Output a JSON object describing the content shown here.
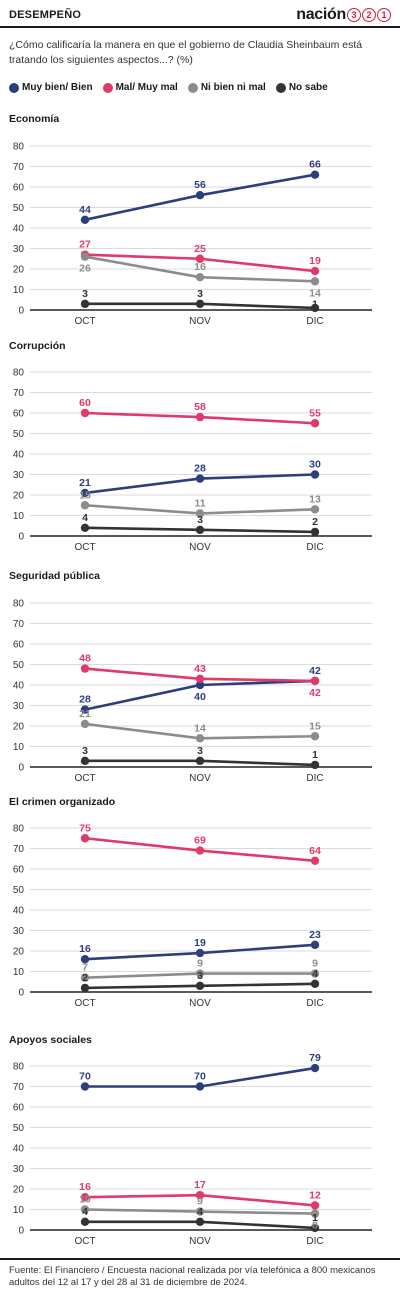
{
  "header": {
    "section": "DESEMPEÑO",
    "brand_word": "nación",
    "brand_digits": [
      "3",
      "2",
      "1"
    ]
  },
  "question": "¿Cómo calificaría la manera en que el gobierno de Claudia Sheinbaum está tratando los siguientes aspectos...? (%)",
  "legend": [
    {
      "label": "Muy bien/ Bien",
      "color": "#2d3e7c"
    },
    {
      "label": "Mal/ Muy mal",
      "color": "#e0396a"
    },
    {
      "label": "Ni bien ni mal",
      "color": "#8c8c8c"
    },
    {
      "label": "No sabe",
      "color": "#333333"
    }
  ],
  "chart_data": [
    {
      "type": "line",
      "title": "Economía",
      "categories": [
        "OCT",
        "NOV",
        "DIC"
      ],
      "ylim": [
        0,
        80
      ],
      "yticks": [
        "0",
        "10",
        "20",
        "30",
        "40",
        "50",
        "60",
        "70",
        "80"
      ],
      "grid": true,
      "series": [
        {
          "name": "Muy bien/ Bien",
          "color": "#2d3e7c",
          "values": [
            44,
            56,
            66
          ]
        },
        {
          "name": "Mal/ Muy mal",
          "color": "#e0396a",
          "values": [
            27,
            25,
            19
          ]
        },
        {
          "name": "Ni bien ni mal",
          "color": "#8c8c8c",
          "values": [
            26,
            16,
            14
          ]
        },
        {
          "name": "No sabe",
          "color": "#333333",
          "values": [
            3,
            3,
            1
          ]
        }
      ]
    },
    {
      "type": "line",
      "title": "Corrupción",
      "categories": [
        "OCT",
        "NOV",
        "DIC"
      ],
      "ylim": [
        0,
        80
      ],
      "yticks": [
        "0",
        "10",
        "20",
        "30",
        "40",
        "50",
        "60",
        "70",
        "80"
      ],
      "grid": true,
      "series": [
        {
          "name": "Muy bien/ Bien",
          "color": "#2d3e7c",
          "values": [
            21,
            28,
            30
          ]
        },
        {
          "name": "Mal/ Muy mal",
          "color": "#e0396a",
          "values": [
            60,
            58,
            55
          ]
        },
        {
          "name": "Ni bien ni mal",
          "color": "#8c8c8c",
          "values": [
            15,
            11,
            13
          ]
        },
        {
          "name": "No sabe",
          "color": "#333333",
          "values": [
            4,
            3,
            2
          ]
        }
      ]
    },
    {
      "type": "line",
      "title": "Seguridad pública",
      "categories": [
        "OCT",
        "NOV",
        "DIC"
      ],
      "ylim": [
        0,
        80
      ],
      "yticks": [
        "0",
        "10",
        "20",
        "30",
        "40",
        "50",
        "60",
        "70",
        "80"
      ],
      "grid": true,
      "series": [
        {
          "name": "Muy bien/ Bien",
          "color": "#2d3e7c",
          "values": [
            28,
            40,
            42
          ]
        },
        {
          "name": "Mal/ Muy mal",
          "color": "#e0396a",
          "values": [
            48,
            43,
            42
          ]
        },
        {
          "name": "Ni bien ni mal",
          "color": "#8c8c8c",
          "values": [
            21,
            14,
            15
          ]
        },
        {
          "name": "No sabe",
          "color": "#333333",
          "values": [
            3,
            3,
            1
          ]
        }
      ]
    },
    {
      "type": "line",
      "title": "El crimen organizado",
      "categories": [
        "OCT",
        "NOV",
        "DIC"
      ],
      "ylim": [
        0,
        80
      ],
      "yticks": [
        "0",
        "10",
        "20",
        "30",
        "40",
        "50",
        "60",
        "70",
        "80"
      ],
      "grid": true,
      "series": [
        {
          "name": "Muy bien/ Bien",
          "color": "#2d3e7c",
          "values": [
            16,
            19,
            23
          ]
        },
        {
          "name": "Mal/ Muy mal",
          "color": "#e0396a",
          "values": [
            75,
            69,
            64
          ]
        },
        {
          "name": "Ni bien ni mal",
          "color": "#8c8c8c",
          "values": [
            7,
            9,
            9
          ]
        },
        {
          "name": "No sabe",
          "color": "#333333",
          "values": [
            2,
            3,
            4
          ]
        }
      ]
    },
    {
      "type": "line",
      "title": "Apoyos sociales",
      "categories": [
        "OCT",
        "NOV",
        "DIC"
      ],
      "ylim": [
        0,
        80
      ],
      "yticks": [
        "0",
        "10",
        "20",
        "30",
        "40",
        "50",
        "60",
        "70",
        "80"
      ],
      "grid": true,
      "series": [
        {
          "name": "Muy bien/ Bien",
          "color": "#2d3e7c",
          "values": [
            70,
            70,
            79
          ]
        },
        {
          "name": "Mal/ Muy mal",
          "color": "#e0396a",
          "values": [
            16,
            17,
            12
          ]
        },
        {
          "name": "Ni bien ni mal",
          "color": "#8c8c8c",
          "values": [
            10,
            9,
            8
          ]
        },
        {
          "name": "No sabe",
          "color": "#333333",
          "values": [
            4,
            4,
            1
          ]
        }
      ]
    }
  ],
  "source": "Fuente: El Financiero / Encuesta nacional realizada por vía telefónica a 800 mexicanos adultos del 12 al 17 y del 28 al 31 de diciembre de 2024."
}
